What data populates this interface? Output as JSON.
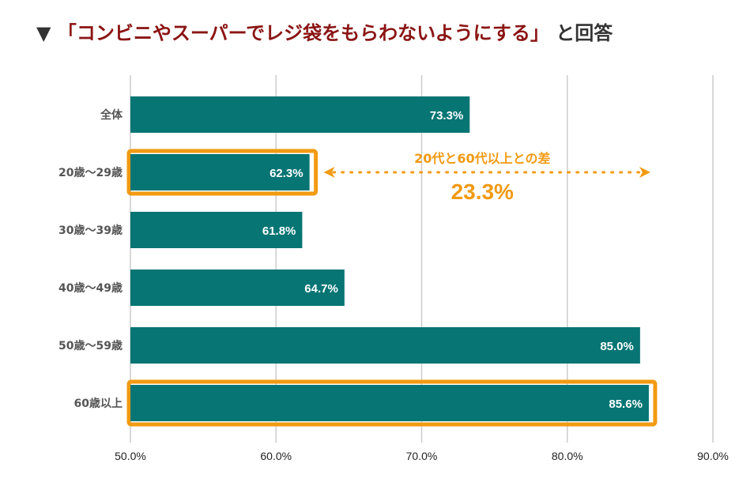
{
  "title": {
    "marker": "▼",
    "quote": "「コンビニやスーパーでレジ袋をもらわないようにする」",
    "suffix": "と回答"
  },
  "colors": {
    "bar": "#077574",
    "highlight": "#f29a12",
    "grid": "#cccccc",
    "title_quote": "#8b1414"
  },
  "chart_data": {
    "type": "bar",
    "orientation": "horizontal",
    "categories": [
      "全体",
      "20歳〜29歳",
      "30歳〜39歳",
      "40歳〜49歳",
      "50歳〜59歳",
      "60歳以上"
    ],
    "values": [
      73.3,
      62.3,
      61.8,
      64.7,
      85.0,
      85.6
    ],
    "value_labels": [
      "73.3%",
      "62.3%",
      "61.8%",
      "64.7%",
      "85.0%",
      "85.6%"
    ],
    "highlighted": [
      "20歳〜29歳",
      "60歳以上"
    ],
    "xlim": [
      50,
      90
    ],
    "xticks": [
      50,
      60,
      70,
      80,
      90
    ],
    "xtick_labels": [
      "50.0%",
      "60.0%",
      "70.0%",
      "80.0%",
      "90.0%"
    ],
    "grid": "vertical",
    "annotation": {
      "label": "20代と60代以上との差",
      "value": "23.3%",
      "from": 62.3,
      "to": 85.6
    }
  }
}
